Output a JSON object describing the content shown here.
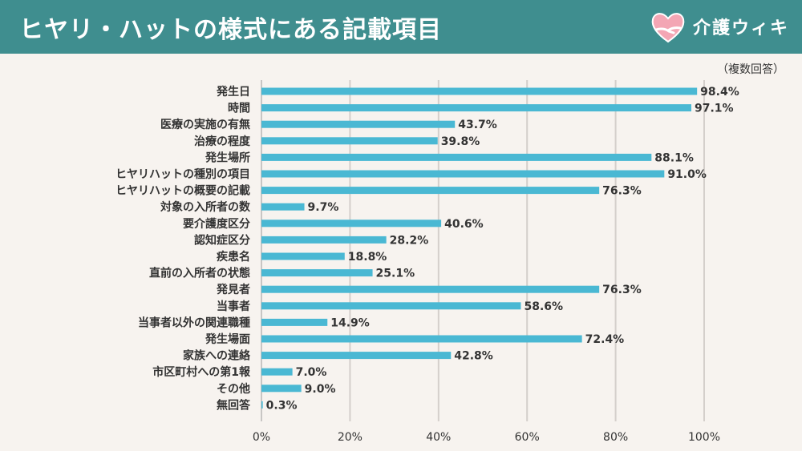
{
  "header": {
    "title": "ヒヤリ・ハットの様式にある記載項目",
    "brand": "介護ウィキ"
  },
  "note": "（複数回答）",
  "colors": {
    "header_bg": "#3f8e8f",
    "bar": "#4ab8d3",
    "grid": "#d4cfcb",
    "page_bg": "#f7f3ef"
  },
  "chart_data": {
    "type": "bar",
    "orientation": "horizontal",
    "categories": [
      "発生日",
      "時間",
      "医療の実施の有無",
      "治療の程度",
      "発生場所",
      "ヒヤリハットの種別の項目",
      "ヒヤリハットの概要の記載",
      "対象の入所者の数",
      "要介護度区分",
      "認知症区分",
      "疾患名",
      "直前の入所者の状態",
      "発見者",
      "当事者",
      "当事者以外の関連職種",
      "発生場面",
      "家族への連絡",
      "市区町村への第1報",
      "その他",
      "無回答"
    ],
    "values": [
      98.4,
      97.1,
      43.7,
      39.8,
      88.1,
      91.0,
      76.3,
      9.7,
      40.6,
      28.2,
      18.8,
      25.1,
      76.3,
      58.6,
      14.9,
      72.4,
      42.8,
      7.0,
      9.0,
      0.3
    ],
    "value_labels": [
      "98.4%",
      "97.1%",
      "43.7%",
      "39.8%",
      "88.1%",
      "91.0%",
      "76.3%",
      "9.7%",
      "40.6%",
      "28.2%",
      "18.8%",
      "25.1%",
      "76.3%",
      "58.6%",
      "14.9%",
      "72.4%",
      "42.8%",
      "7.0%",
      "9.0%",
      "0.3%"
    ],
    "xlim": [
      0,
      100
    ],
    "x_ticks": [
      0,
      20,
      40,
      60,
      80,
      100
    ],
    "x_tick_labels": [
      "0%",
      "20%",
      "40%",
      "60%",
      "80%",
      "100%"
    ],
    "grid": true
  }
}
